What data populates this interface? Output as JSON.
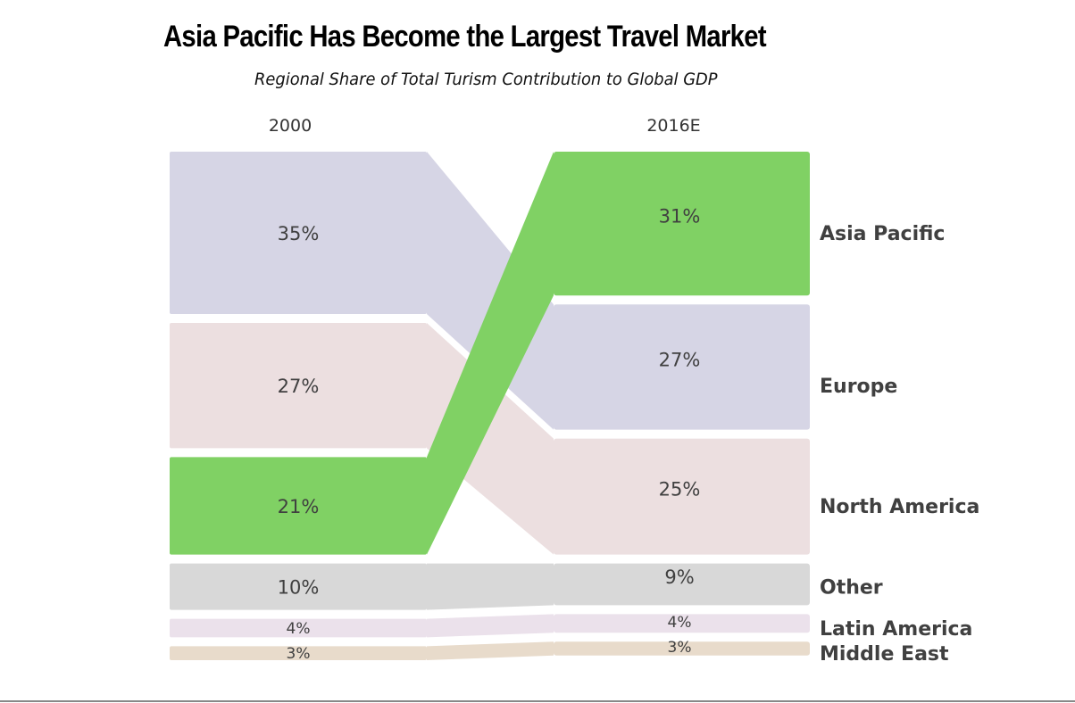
{
  "title": "Asia Pacific Has Become the Largest Travel Market",
  "subtitle": "Regional Share of Total Turism Contribution to Global GDP",
  "chart_data": {
    "type": "sankey",
    "columns": [
      "2000",
      "2016E"
    ],
    "series": [
      {
        "name": "Asia Pacific",
        "from": 21,
        "to": 31,
        "from_label": "21%",
        "to_label": "31%",
        "color": "#80d164"
      },
      {
        "name": "Europe",
        "from": 35,
        "to": 27,
        "from_label": "35%",
        "to_label": "27%",
        "color": "#d6d5e5"
      },
      {
        "name": "North America",
        "from": 27,
        "to": 25,
        "from_label": "27%",
        "to_label": "25%",
        "color": "#ecdfe0"
      },
      {
        "name": "Other",
        "from": 10,
        "to": 9,
        "from_label": "10%",
        "to_label": "9%",
        "color": "#d8d8d8"
      },
      {
        "name": "Latin America",
        "from": 4,
        "to": 4,
        "from_label": "4%",
        "to_label": "4%",
        "color": "#ebe1eb"
      },
      {
        "name": "Middle East",
        "from": 3,
        "to": 3,
        "from_label": "3%",
        "to_label": "3%",
        "color": "#e8dbcb"
      }
    ]
  }
}
